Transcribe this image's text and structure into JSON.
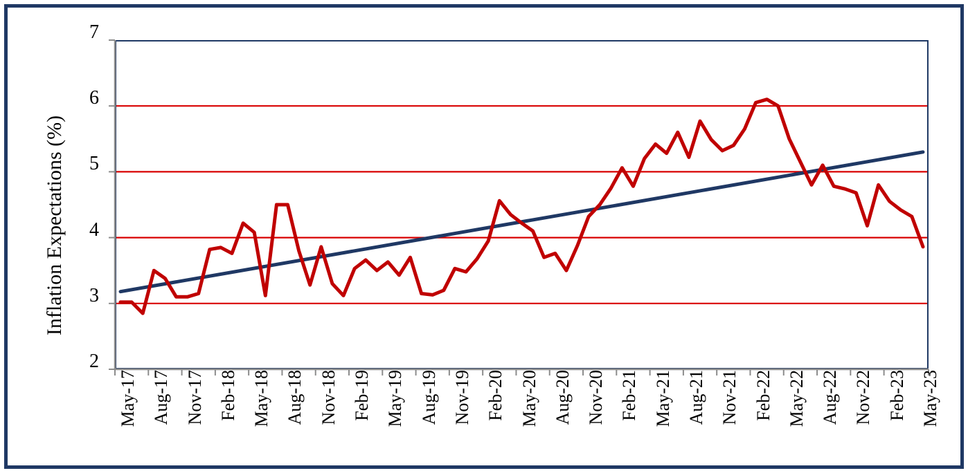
{
  "figure": {
    "ylabel": "Inflation Expectations (%)",
    "colors": {
      "series_red": "#C00000",
      "trend_navy": "#1F3864",
      "gridline_red": "#D90000",
      "axis_gray": "#8C8C8C",
      "outer_border_navy": "#1F3864",
      "plot_border_navy": "#1F3864",
      "text": "#000000",
      "background": "#FFFFFF"
    }
  },
  "chart_data": {
    "type": "line",
    "title": "",
    "xlabel": "",
    "ylabel": "Inflation Expectations (%)",
    "ylim": [
      2,
      7
    ],
    "yticks": [
      2,
      3,
      4,
      5,
      6,
      7
    ],
    "gridlines_at": [
      3,
      4,
      5,
      6
    ],
    "grid": "horizontal-red",
    "legend": "none",
    "x": [
      "May-17",
      "Jun-17",
      "Jul-17",
      "Aug-17",
      "Sep-17",
      "Oct-17",
      "Nov-17",
      "Dec-17",
      "Jan-18",
      "Feb-18",
      "Mar-18",
      "Apr-18",
      "May-18",
      "Jun-18",
      "Jul-18",
      "Aug-18",
      "Sep-18",
      "Oct-18",
      "Nov-18",
      "Dec-18",
      "Jan-19",
      "Feb-19",
      "Mar-19",
      "Apr-19",
      "May-19",
      "Jun-19",
      "Jul-19",
      "Aug-19",
      "Sep-19",
      "Oct-19",
      "Nov-19",
      "Dec-19",
      "Jan-20",
      "Feb-20",
      "Mar-20",
      "Apr-20",
      "May-20",
      "Jun-20",
      "Jul-20",
      "Aug-20",
      "Sep-20",
      "Oct-20",
      "Nov-20",
      "Dec-20",
      "Jan-21",
      "Feb-21",
      "Mar-21",
      "Apr-21",
      "May-21",
      "Jun-21",
      "Jul-21",
      "Aug-21",
      "Sep-21",
      "Oct-21",
      "Nov-21",
      "Dec-21",
      "Jan-22",
      "Feb-22",
      "Mar-22",
      "Apr-22",
      "May-22",
      "Jun-22",
      "Jul-22",
      "Aug-22",
      "Sep-22",
      "Oct-22",
      "Nov-22",
      "Dec-22",
      "Jan-23",
      "Feb-23",
      "Mar-23",
      "Apr-23",
      "May-23"
    ],
    "x_tick_labels": [
      "May-17",
      "Aug-17",
      "Nov-17",
      "Feb-18",
      "May-18",
      "Aug-18",
      "Nov-18",
      "Feb-19",
      "May-19",
      "Aug-19",
      "Nov-19",
      "Feb-20",
      "May-20",
      "Aug-20",
      "Nov-20",
      "Feb-21",
      "May-21",
      "Aug-21",
      "Nov-21",
      "Feb-22",
      "May-22",
      "Aug-22",
      "Nov-22",
      "Feb-23",
      "May-23"
    ],
    "series": [
      {
        "name": "Inflation Expectations",
        "style": "jagged-line",
        "color": "#C00000",
        "values": [
          3.02,
          3.02,
          2.85,
          3.5,
          3.38,
          3.1,
          3.1,
          3.15,
          3.82,
          3.85,
          3.76,
          4.22,
          4.08,
          3.12,
          4.5,
          4.5,
          3.8,
          3.28,
          3.86,
          3.3,
          3.12,
          3.53,
          3.66,
          3.5,
          3.63,
          3.43,
          3.7,
          3.15,
          3.13,
          3.2,
          3.53,
          3.48,
          3.68,
          3.95,
          4.56,
          4.35,
          4.22,
          4.1,
          3.7,
          3.76,
          3.5,
          3.88,
          4.32,
          4.5,
          4.75,
          5.06,
          4.78,
          5.2,
          5.42,
          5.28,
          5.6,
          5.22,
          5.77,
          5.49,
          5.32,
          5.4,
          5.65,
          6.05,
          6.1,
          6.0,
          5.5,
          5.15,
          4.8,
          5.1,
          4.78,
          4.74,
          4.68,
          4.18,
          4.8,
          4.55,
          4.42,
          4.32,
          3.86
        ]
      },
      {
        "name": "Linear trend",
        "style": "straight-line",
        "color": "#1F3864",
        "endpoint_values": [
          3.18,
          5.3
        ]
      }
    ]
  }
}
